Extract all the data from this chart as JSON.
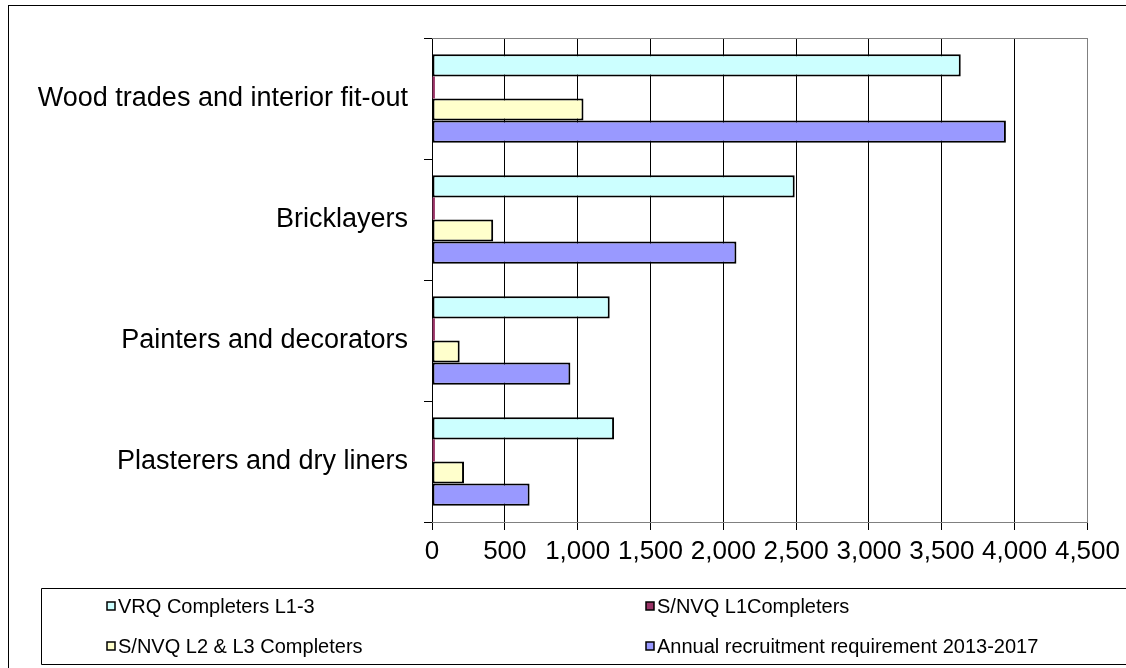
{
  "chart_data": {
    "type": "bar",
    "orientation": "horizontal",
    "categories": [
      "Wood trades and interior fit-out",
      "Bricklayers",
      "Painters and decorators",
      "Plasterers and dry liners"
    ],
    "series": [
      {
        "name": "VRQ Completers L1-3",
        "color": "#ccffff",
        "values": [
          3630,
          2490,
          1220,
          1250
        ]
      },
      {
        "name": "S/NVQ L1Completers",
        "color": "#993366",
        "values": [
          20,
          20,
          20,
          20
        ]
      },
      {
        "name": "S/NVQ L2 & L3 Completers",
        "color": "#ffffcc",
        "values": [
          1040,
          420,
          190,
          220
        ]
      },
      {
        "name": "Annual recruitment requirement 2013-2017",
        "color": "#9999ff",
        "values": [
          3940,
          2090,
          950,
          670
        ]
      }
    ],
    "xlim": [
      0,
      4500
    ],
    "xticks": [
      0,
      500,
      {
        "value": 1000,
        "label": "1,000"
      },
      {
        "value": 1500,
        "label": "1,500"
      },
      {
        "value": 2000,
        "label": "2,000"
      },
      {
        "value": 2500,
        "label": "2,500"
      },
      {
        "value": 3000,
        "label": "3,000"
      },
      {
        "value": 3500,
        "label": "3,500"
      },
      {
        "value": 4000,
        "label": "4,000"
      },
      {
        "value": 4500,
        "label": "4,500"
      }
    ],
    "grid": "x",
    "legend": "bottom"
  }
}
